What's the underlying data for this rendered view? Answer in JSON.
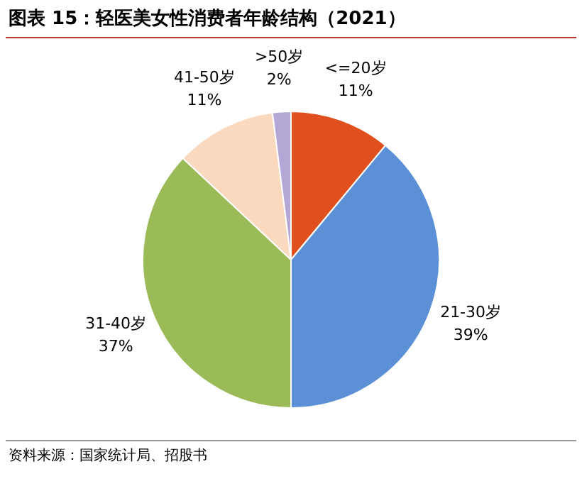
{
  "chart_data": {
    "type": "pie",
    "title": "图表 15：轻医美女性消费者年龄结构（2021）",
    "categories": [
      "<=20岁",
      "21-30岁",
      "31-40岁",
      "41-50岁",
      ">50岁"
    ],
    "values": [
      11,
      39,
      37,
      11,
      2
    ],
    "value_labels": [
      "11%",
      "39%",
      "37%",
      "11%",
      "2%"
    ],
    "colors": [
      "#e0501e",
      "#5b8fd6",
      "#9bbb59",
      "#fad9bf",
      "#b4a7d6"
    ],
    "legend": false,
    "annotations": [
      "资料来源：国家统计局、招股书"
    ]
  }
}
